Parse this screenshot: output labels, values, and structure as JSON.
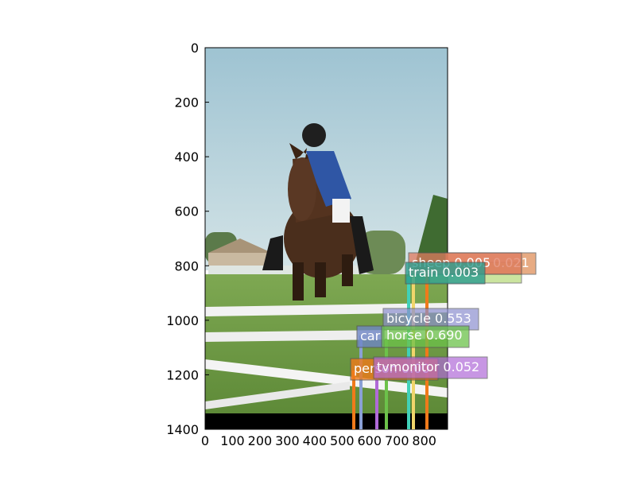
{
  "figure": {
    "image_extent": {
      "width": 885,
      "height": 1400
    },
    "xlim": [
      0,
      885
    ],
    "ylim": [
      1400,
      0
    ],
    "x_ticks": [
      0,
      100,
      200,
      300,
      400,
      500,
      600,
      700,
      800
    ],
    "y_ticks": [
      0,
      200,
      400,
      600,
      800,
      1000,
      1200,
      1400
    ]
  },
  "photo": {
    "subject": "rider-on-horse-jumping",
    "colors": {
      "sky_top": "#9ec3d2",
      "sky_bottom": "#cfe0e4",
      "grass": "#6f9a45",
      "horse": "#4a2e1c",
      "jacket": "#2f56a5",
      "rail": "#f2f2f2",
      "border": "#000000"
    }
  },
  "detections": [
    {
      "label": "sheep 0.005",
      "color": "#e07a5f"
    },
    {
      "label": "train 0.003",
      "color": "#2a9d8f"
    },
    {
      "label": "bicycle 0.553",
      "color": "#8c8fcf"
    },
    {
      "label": "car",
      "color": "#6f86c6"
    },
    {
      "label": "horse 0.690",
      "color": "#6cc24a"
    },
    {
      "label": "tvmonitor 0.052",
      "color": "#b06ad8"
    },
    {
      "label": "person 0.00",
      "color": "#f07a1a"
    },
    {
      "label": "0.021",
      "color": "#e0905a"
    }
  ]
}
